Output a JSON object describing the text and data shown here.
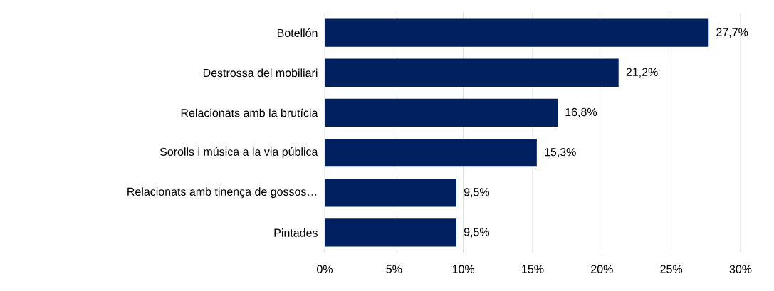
{
  "chart_data": {
    "type": "bar",
    "orientation": "horizontal",
    "categories": [
      "Botellón",
      "Destrossa del mobiliari",
      "Relacionats amb la brutícia",
      "Sorolls i música a la via pública",
      "Relacionats amb tinença de gossos…",
      "Pintades"
    ],
    "values": [
      27.7,
      21.2,
      16.8,
      15.3,
      9.5,
      9.5
    ],
    "value_labels": [
      "27,7%",
      "21,2%",
      "16,8%",
      "15,3%",
      "9,5%",
      "9,5%"
    ],
    "color": "#002060",
    "xlim": [
      0,
      30
    ],
    "xticks": [
      {
        "value": 0,
        "label": "0%"
      },
      {
        "value": 5,
        "label": "5%"
      },
      {
        "value": 10,
        "label": "10%"
      },
      {
        "value": 15,
        "label": "15%"
      },
      {
        "value": 20,
        "label": "20%"
      },
      {
        "value": 25,
        "label": "25%"
      },
      {
        "value": 30,
        "label": "30%"
      }
    ],
    "grid": "x"
  }
}
